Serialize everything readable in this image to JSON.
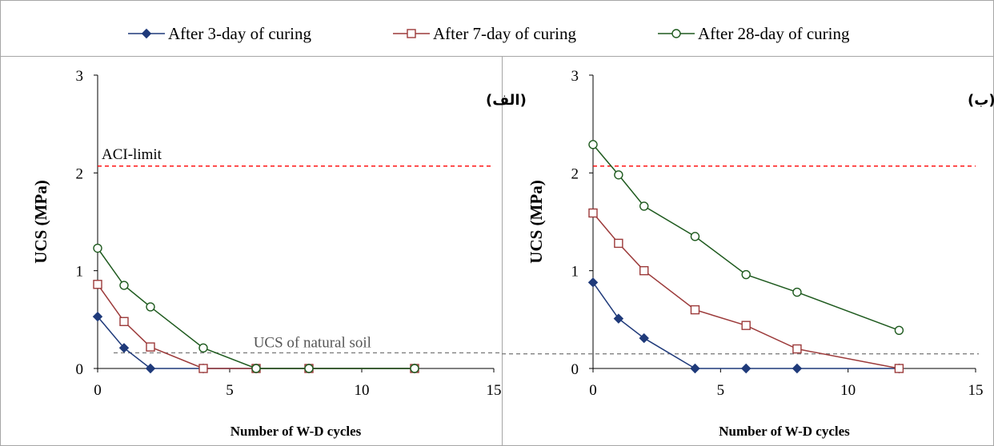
{
  "legend": {
    "items": [
      {
        "label": "After 3-day of curing",
        "marker": "diamond",
        "color": "#1f3a7a"
      },
      {
        "label": "After 7-day of curing",
        "marker": "square",
        "color": "#9c3a3a"
      },
      {
        "label": "After 28-day of curing",
        "marker": "circle",
        "color": "#1e5a1e"
      }
    ]
  },
  "chart_data": [
    {
      "type": "line",
      "panel_label": "(الف)",
      "xlabel": "Number of W-D cycles",
      "ylabel": "UCS (MPa)",
      "xlim": [
        0,
        15
      ],
      "ylim": [
        0,
        3
      ],
      "xticks": [
        0,
        5,
        10,
        15
      ],
      "yticks": [
        0,
        1,
        2,
        3
      ],
      "reference_lines": [
        {
          "y": 2.07,
          "label": "ACI-limit",
          "color": "#ff0000"
        },
        {
          "y": 0.16,
          "label": "UCS of natural soil",
          "color": "#808080"
        }
      ],
      "series": [
        {
          "name": "After 3-day of curing",
          "marker": "diamond",
          "color": "#1f3a7a",
          "x": [
            0,
            1,
            2,
            4,
            6,
            8,
            12
          ],
          "y": [
            0.53,
            0.21,
            0.0,
            0.0,
            0.0,
            0.0,
            0.0
          ]
        },
        {
          "name": "After 7-day of curing",
          "marker": "square",
          "color": "#9c3a3a",
          "x": [
            0,
            1,
            2,
            4,
            6,
            8,
            12
          ],
          "y": [
            0.86,
            0.48,
            0.22,
            0.0,
            0.0,
            0.0,
            0.0
          ]
        },
        {
          "name": "After 28-day of curing",
          "marker": "circle",
          "color": "#1e5a1e",
          "x": [
            0,
            1,
            2,
            4,
            6,
            8,
            12
          ],
          "y": [
            1.23,
            0.85,
            0.63,
            0.21,
            0.0,
            0.0,
            0.0
          ]
        }
      ]
    },
    {
      "type": "line",
      "panel_label": "(ب)",
      "xlabel": "Number of W-D cycles",
      "ylabel": "UCS (MPa)",
      "xlim": [
        0,
        15
      ],
      "ylim": [
        0,
        3
      ],
      "xticks": [
        0,
        5,
        10,
        15
      ],
      "yticks": [
        0,
        1,
        2,
        3
      ],
      "reference_lines": [
        {
          "y": 2.07,
          "label": "",
          "color": "#ff0000"
        },
        {
          "y": 0.15,
          "label": "",
          "color": "#808080"
        }
      ],
      "series": [
        {
          "name": "After 3-day of curing",
          "marker": "diamond",
          "color": "#1f3a7a",
          "x": [
            0,
            1,
            2,
            4,
            6,
            8,
            12
          ],
          "y": [
            0.88,
            0.51,
            0.31,
            0.0,
            0.0,
            0.0,
            0.0
          ]
        },
        {
          "name": "After 7-day of curing",
          "marker": "square",
          "color": "#9c3a3a",
          "x": [
            0,
            1,
            2,
            4,
            6,
            8,
            12
          ],
          "y": [
            1.59,
            1.28,
            1.0,
            0.6,
            0.44,
            0.2,
            0.0
          ]
        },
        {
          "name": "After 28-day of curing",
          "marker": "circle",
          "color": "#1e5a1e",
          "x": [
            0,
            1,
            2,
            4,
            6,
            8,
            12
          ],
          "y": [
            2.29,
            1.98,
            1.66,
            1.35,
            0.96,
            0.78,
            0.39
          ]
        }
      ]
    }
  ]
}
